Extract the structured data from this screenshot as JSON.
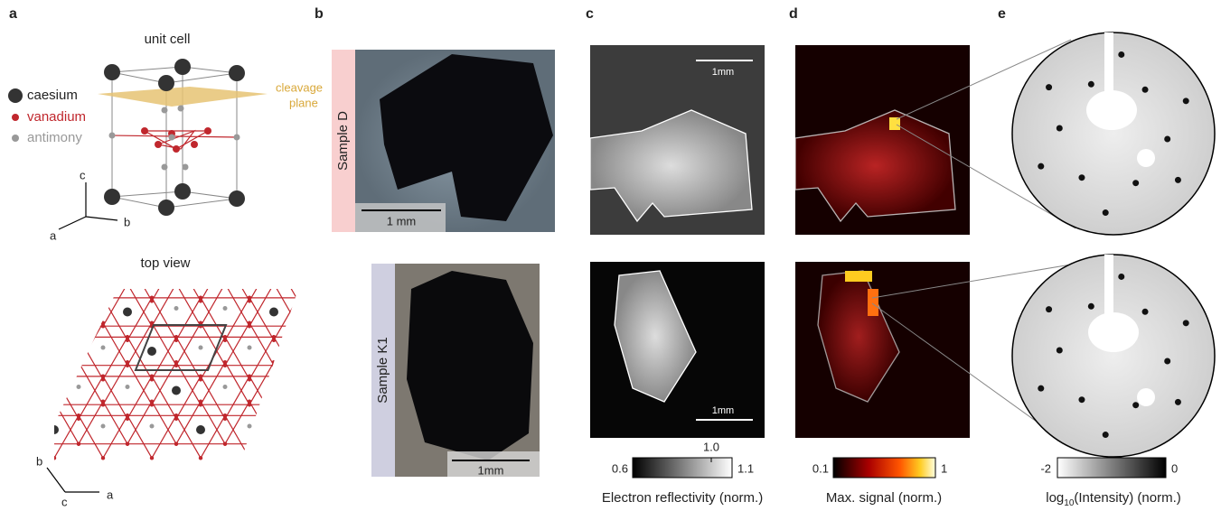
{
  "panels": {
    "a": {
      "label": "a",
      "unit_cell_title": "unit cell",
      "legend": [
        "caesium",
        "vanadium",
        "antimony"
      ],
      "cleavage": [
        "cleavage",
        "plane"
      ],
      "axes_3d": {
        "c": "c",
        "a": "a",
        "b": "b"
      },
      "top_view_title": "top view",
      "axes_top": {
        "b": "b",
        "c": "c",
        "a": "a"
      }
    },
    "b": {
      "label": "b",
      "sample_top": "Sample D",
      "scale_top": "1 mm",
      "sample_bottom": "Sample K1",
      "scale_bottom": "1mm"
    },
    "c": {
      "label": "c",
      "scale_top": "1mm",
      "scale_bottom": "1mm",
      "colorbar": {
        "min": "0.6",
        "mid": "1.0",
        "max": "1.1",
        "title": "Electron reflectivity (norm.)"
      }
    },
    "d": {
      "label": "d",
      "colorbar": {
        "min": "0.1",
        "max": "1",
        "title": "Max. signal (norm.)"
      }
    },
    "e": {
      "label": "e",
      "colorbar": {
        "min": "-2",
        "max": "0",
        "title_main": "log",
        "title_sub": "10",
        "title_rest": "(Intensity) (norm.)"
      }
    }
  }
}
